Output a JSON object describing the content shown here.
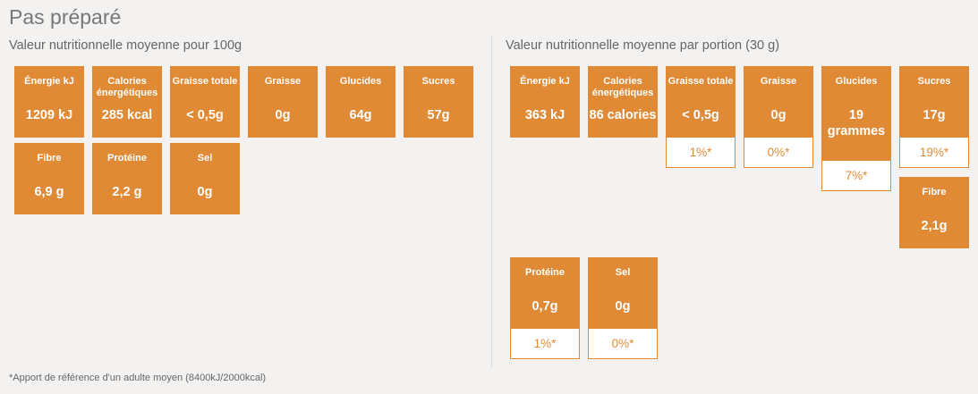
{
  "page_title": "Pas préparé",
  "per100": {
    "heading": "Valeur nutritionnelle moyenne pour 100g",
    "tiles": [
      {
        "label": "Énergie kJ",
        "value": "1209 kJ"
      },
      {
        "label": "Calories énergétiques",
        "value": "285 kcal"
      },
      {
        "label": "Graisse totale",
        "value": "< 0,5g"
      },
      {
        "label": "Graisse",
        "value": "0g"
      },
      {
        "label": "Glucides",
        "value": "64g"
      },
      {
        "label": "Sucres",
        "value": "57g"
      },
      {
        "label": "Fibre",
        "value": "6,9 g"
      },
      {
        "label": "Protéine",
        "value": "2,2 g"
      },
      {
        "label": "Sel",
        "value": "0g"
      }
    ]
  },
  "portion": {
    "heading": "Valeur nutritionnelle moyenne par portion (30 g)",
    "tiles": [
      {
        "label": "Énergie kJ",
        "value": "363 kJ"
      },
      {
        "label": "Calories énergétiques",
        "value": "86 calories"
      },
      {
        "label": "Graisse totale",
        "value": "< 0,5g",
        "pct": "1%*"
      },
      {
        "label": "Graisse",
        "value": "0g",
        "pct": "0%*"
      },
      {
        "label": "Glucides",
        "value": "19 grammes",
        "pct": "7%*"
      },
      {
        "label": "Sucres",
        "value": "17g",
        "pct": "19%*"
      },
      {
        "label": "Fibre",
        "value": "2,1g"
      },
      {
        "label": "Protéine",
        "value": "0,7g",
        "pct": "1%*"
      },
      {
        "label": "Sel",
        "value": "0g",
        "pct": "0%*"
      }
    ]
  },
  "footnote": "*Apport de référence d'un adulte moyen (8400kJ/2000kcal)"
}
